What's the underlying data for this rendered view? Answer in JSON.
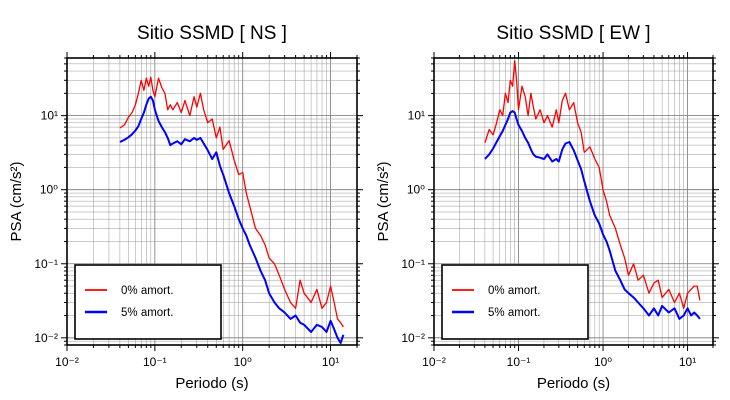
{
  "chart_data": [
    {
      "type": "line",
      "title": "Sitio SSMD [ NS ]",
      "xlabel": "Periodo (s)",
      "ylabel": "PSA (cm/s²)",
      "xscale": "log",
      "yscale": "log",
      "xlim": [
        0.01,
        20
      ],
      "ylim": [
        0.008,
        60
      ],
      "x_ticks": [
        "10⁻²",
        "10⁻¹",
        "10⁰",
        "10¹"
      ],
      "y_ticks": [
        "10¹",
        "10⁰",
        "10⁻¹",
        "10⁻²"
      ],
      "grid": true,
      "legend_position": "bottom-left",
      "series": [
        {
          "name": "0% amort.",
          "color": "#ff0000",
          "x": [
            0.04,
            0.045,
            0.05,
            0.055,
            0.06,
            0.065,
            0.07,
            0.075,
            0.08,
            0.085,
            0.09,
            0.095,
            0.1,
            0.11,
            0.12,
            0.13,
            0.14,
            0.15,
            0.16,
            0.18,
            0.2,
            0.22,
            0.25,
            0.28,
            0.3,
            0.33,
            0.36,
            0.4,
            0.45,
            0.5,
            0.55,
            0.6,
            0.7,
            0.8,
            0.9,
            1.0,
            1.1,
            1.2,
            1.4,
            1.6,
            1.8,
            2.0,
            2.3,
            2.6,
            3.0,
            3.5,
            4.0,
            4.5,
            5,
            6,
            7,
            8,
            9,
            10,
            11,
            12,
            13,
            14
          ],
          "y": [
            6.8,
            7.5,
            9.5,
            11,
            14,
            20,
            30,
            22,
            32,
            25,
            33,
            22,
            18,
            32,
            24,
            20,
            12,
            14,
            12,
            15,
            11,
            16,
            10,
            18,
            13,
            20,
            12,
            8,
            9,
            5,
            7,
            3.5,
            4.6,
            2.5,
            1.6,
            1.7,
            0.9,
            0.6,
            0.3,
            0.24,
            0.18,
            0.12,
            0.1,
            0.07,
            0.045,
            0.03,
            0.025,
            0.06,
            0.04,
            0.03,
            0.045,
            0.025,
            0.03,
            0.05,
            0.03,
            0.018,
            0.016,
            0.014
          ]
        },
        {
          "name": "5% amort.",
          "color": "#0000ff",
          "x": [
            0.04,
            0.045,
            0.05,
            0.055,
            0.06,
            0.065,
            0.07,
            0.075,
            0.08,
            0.085,
            0.09,
            0.095,
            0.1,
            0.11,
            0.12,
            0.13,
            0.14,
            0.15,
            0.16,
            0.18,
            0.2,
            0.22,
            0.25,
            0.28,
            0.3,
            0.33,
            0.36,
            0.4,
            0.45,
            0.5,
            0.55,
            0.6,
            0.7,
            0.8,
            0.9,
            1.0,
            1.1,
            1.2,
            1.4,
            1.6,
            1.8,
            2.0,
            2.3,
            2.6,
            3.0,
            3.5,
            4.0,
            4.5,
            5,
            6,
            7,
            8,
            9,
            10,
            11,
            12,
            13,
            14
          ],
          "y": [
            4.4,
            4.7,
            5.1,
            5.6,
            6.3,
            7.2,
            9,
            11,
            14,
            17,
            18,
            16,
            12,
            8.5,
            7,
            6,
            5,
            4,
            4.2,
            4.5,
            4.1,
            4.8,
            4.5,
            5,
            4.7,
            5,
            4.2,
            3.4,
            2.6,
            3.2,
            2.1,
            1.6,
            0.9,
            0.6,
            0.4,
            0.3,
            0.24,
            0.18,
            0.12,
            0.08,
            0.06,
            0.04,
            0.03,
            0.025,
            0.022,
            0.018,
            0.02,
            0.016,
            0.015,
            0.012,
            0.015,
            0.014,
            0.012,
            0.017,
            0.013,
            0.01,
            0.0085,
            0.011
          ]
        }
      ]
    },
    {
      "type": "line",
      "title": "Sitio SSMD [ EW ]",
      "xlabel": "Periodo (s)",
      "ylabel": "PSA (cm/s²)",
      "xscale": "log",
      "yscale": "log",
      "xlim": [
        0.01,
        20
      ],
      "ylim": [
        0.008,
        60
      ],
      "x_ticks": [
        "10⁻²",
        "10⁻¹",
        "10⁰",
        "10¹"
      ],
      "y_ticks": [
        "10¹",
        "10⁰",
        "10⁻¹",
        "10⁻²"
      ],
      "grid": true,
      "legend_position": "bottom-left",
      "series": [
        {
          "name": "0% amort.",
          "color": "#ff0000",
          "x": [
            0.04,
            0.045,
            0.05,
            0.055,
            0.06,
            0.065,
            0.07,
            0.075,
            0.08,
            0.085,
            0.09,
            0.095,
            0.1,
            0.11,
            0.12,
            0.13,
            0.14,
            0.15,
            0.16,
            0.18,
            0.2,
            0.22,
            0.25,
            0.28,
            0.3,
            0.33,
            0.36,
            0.4,
            0.45,
            0.5,
            0.55,
            0.6,
            0.7,
            0.8,
            0.9,
            1.0,
            1.1,
            1.2,
            1.4,
            1.6,
            1.8,
            2.0,
            2.3,
            2.6,
            3.0,
            3.5,
            4.0,
            4.5,
            5,
            6,
            7,
            8,
            9,
            10,
            11,
            12,
            13,
            14
          ],
          "y": [
            4.3,
            6.5,
            5.5,
            8,
            12,
            10,
            20,
            15,
            30,
            25,
            55,
            30,
            12,
            25,
            18,
            10,
            20,
            13,
            9,
            12,
            8,
            10,
            7,
            12,
            8,
            16,
            20,
            12,
            15,
            8,
            6,
            3.2,
            3.8,
            2.6,
            2,
            1,
            0.7,
            0.45,
            0.3,
            0.18,
            0.12,
            0.07,
            0.1,
            0.06,
            0.07,
            0.04,
            0.055,
            0.06,
            0.035,
            0.045,
            0.03,
            0.04,
            0.025,
            0.04,
            0.045,
            0.05,
            0.05,
            0.032
          ]
        },
        {
          "name": "5% amort.",
          "color": "#0000ff",
          "x": [
            0.04,
            0.045,
            0.05,
            0.055,
            0.06,
            0.065,
            0.07,
            0.075,
            0.08,
            0.085,
            0.09,
            0.095,
            0.1,
            0.11,
            0.12,
            0.13,
            0.14,
            0.15,
            0.16,
            0.18,
            0.2,
            0.22,
            0.25,
            0.28,
            0.3,
            0.33,
            0.36,
            0.4,
            0.45,
            0.5,
            0.55,
            0.6,
            0.7,
            0.8,
            0.9,
            1.0,
            1.1,
            1.2,
            1.4,
            1.6,
            1.8,
            2.0,
            2.3,
            2.6,
            3.0,
            3.5,
            4.0,
            4.5,
            5,
            6,
            7,
            8,
            9,
            10,
            11,
            12,
            13,
            14
          ],
          "y": [
            2.6,
            3,
            3.6,
            4.4,
            5.3,
            6.2,
            7.5,
            9,
            11,
            11.5,
            11,
            9,
            7.5,
            6.2,
            5,
            4.3,
            3.5,
            3,
            2.8,
            2.7,
            2.6,
            3,
            2.4,
            2.6,
            2.4,
            3.5,
            4.2,
            4.4,
            3.4,
            2.5,
            1.9,
            1.3,
            0.7,
            0.45,
            0.35,
            0.25,
            0.2,
            0.15,
            0.08,
            0.06,
            0.045,
            0.04,
            0.035,
            0.03,
            0.025,
            0.02,
            0.025,
            0.02,
            0.027,
            0.022,
            0.025,
            0.018,
            0.02,
            0.025,
            0.02,
            0.022,
            0.02,
            0.018
          ]
        }
      ]
    }
  ]
}
